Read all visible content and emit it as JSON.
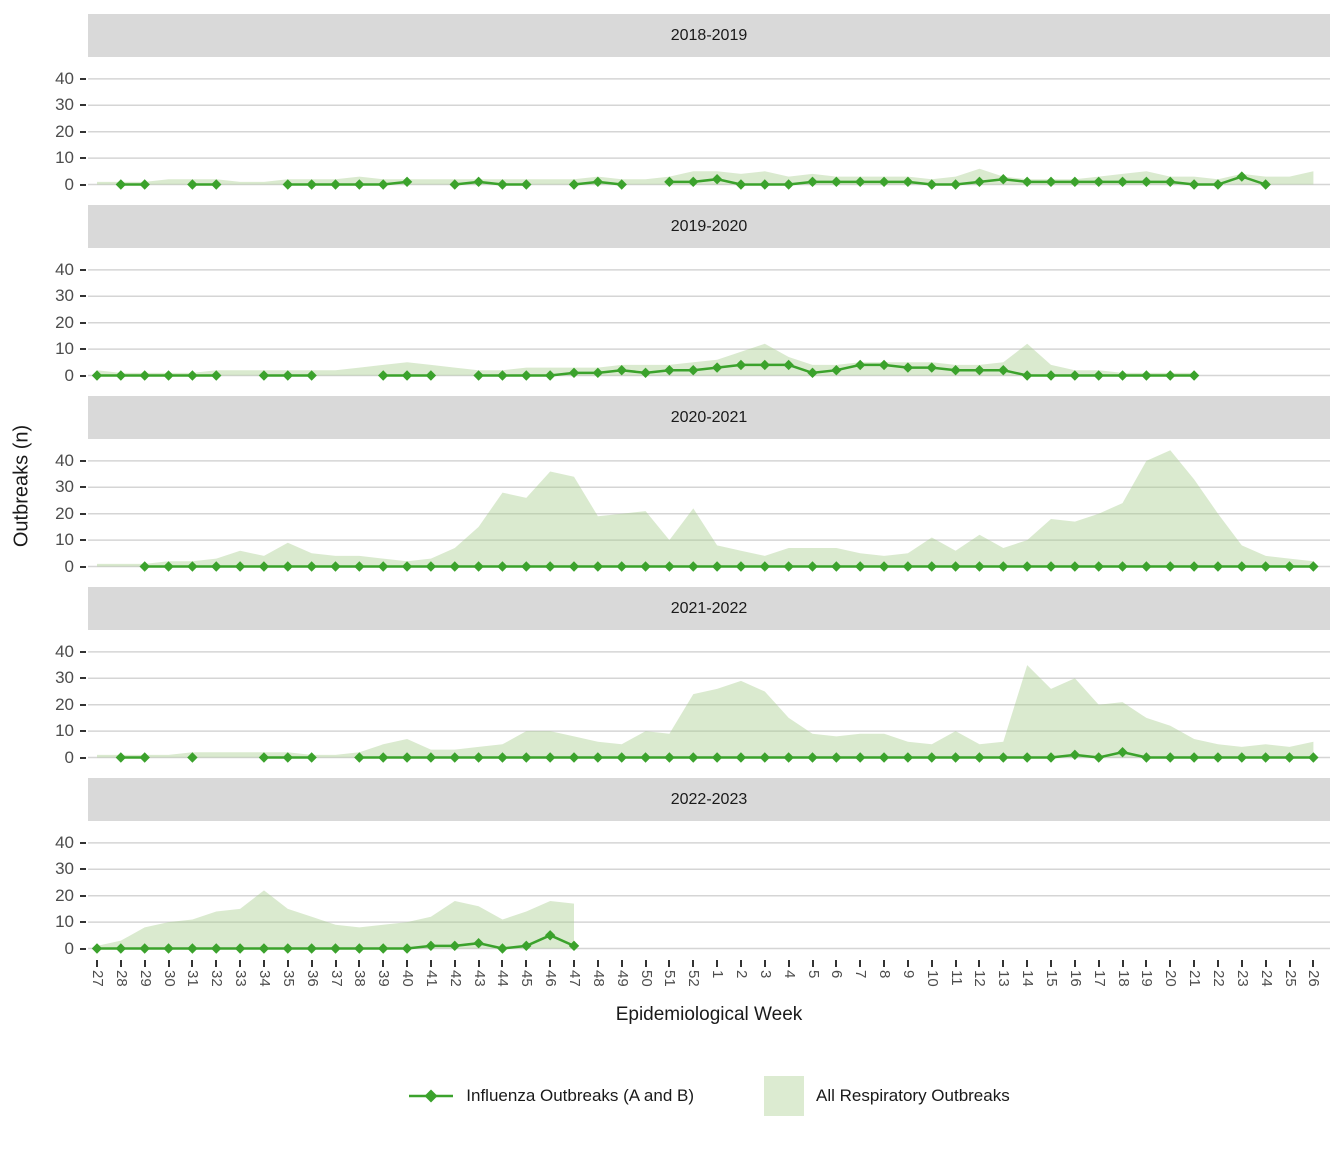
{
  "figure": {
    "y_axis_title": "Outbreaks (n)",
    "x_axis_title": "Epidemiological Week"
  },
  "legend": {
    "line_label": "Influenza Outbreaks (A and B)",
    "area_label": "All Respiratory Outbreaks"
  },
  "chart_data": {
    "type": "area",
    "description": "Faceted seasonal chart: influenza outbreaks (green line with diamond points) and all respiratory outbreaks (light green filled area) by epidemiological week, one panel per season.",
    "xlabel": "Epidemiological Week",
    "ylabel": "Outbreaks (n)",
    "x": [
      "27",
      "28",
      "29",
      "30",
      "31",
      "32",
      "33",
      "34",
      "35",
      "36",
      "37",
      "38",
      "39",
      "40",
      "41",
      "42",
      "43",
      "44",
      "45",
      "46",
      "47",
      "48",
      "49",
      "50",
      "51",
      "52",
      "1",
      "2",
      "3",
      "4",
      "5",
      "6",
      "7",
      "8",
      "9",
      "10",
      "11",
      "12",
      "13",
      "14",
      "15",
      "16",
      "17",
      "18",
      "19",
      "20",
      "21",
      "22",
      "23",
      "24",
      "25",
      "26"
    ],
    "y_ticks": [
      0,
      10,
      20,
      30,
      40
    ],
    "ylim": [
      0,
      44
    ],
    "grid": "horizontal-only",
    "legend_position": "bottom",
    "series_names": [
      "Influenza Outbreaks (A and B)",
      "All Respiratory Outbreaks"
    ],
    "colors": {
      "line": "#3BA22C",
      "area_fill": "#A7CE8C",
      "area_opacity": 0.42,
      "area_effective": "#DCEBD1",
      "strip_bg": "#D9D9D9",
      "grid": "#D5D5D5",
      "axis_text": "#4D4D4D",
      "title_text": "#1A1A1A",
      "tick_mark": "#333333"
    },
    "facets": [
      {
        "season": "2018-2019",
        "influenza": [
          null,
          0,
          0,
          null,
          0,
          0,
          null,
          null,
          0,
          0,
          0,
          0,
          0,
          1,
          null,
          0,
          1,
          0,
          0,
          null,
          0,
          1,
          0,
          null,
          1,
          1,
          2,
          0,
          0,
          0,
          1,
          1,
          1,
          1,
          1,
          0,
          0,
          1,
          2,
          1,
          1,
          1,
          1,
          1,
          1,
          1,
          0,
          0,
          3,
          0,
          null,
          null
        ],
        "respiratory": [
          1,
          1,
          1,
          2,
          2,
          2,
          1,
          1,
          2,
          2,
          2,
          3,
          2,
          2,
          2,
          2,
          2,
          2,
          2,
          2,
          2,
          3,
          2,
          2,
          3,
          5,
          5,
          4,
          5,
          3,
          4,
          3,
          3,
          3,
          3,
          2,
          3,
          6,
          3,
          2,
          2,
          2,
          3,
          4,
          5,
          3,
          3,
          2,
          4,
          3,
          3,
          5
        ]
      },
      {
        "season": "2019-2020",
        "influenza": [
          0,
          0,
          0,
          0,
          0,
          0,
          null,
          0,
          0,
          0,
          null,
          null,
          0,
          0,
          0,
          null,
          0,
          0,
          0,
          0,
          1,
          1,
          2,
          1,
          2,
          2,
          3,
          4,
          4,
          4,
          1,
          2,
          4,
          4,
          3,
          3,
          2,
          2,
          2,
          0,
          0,
          0,
          0,
          0,
          0,
          0,
          0,
          null,
          null,
          null,
          null,
          null
        ],
        "respiratory": [
          2,
          1,
          1,
          1,
          1,
          2,
          2,
          2,
          2,
          2,
          2,
          3,
          4,
          5,
          4,
          3,
          2,
          2,
          3,
          3,
          3,
          3,
          4,
          4,
          4,
          5,
          6,
          9,
          12,
          7,
          4,
          4,
          5,
          5,
          5,
          5,
          4,
          4,
          5,
          12,
          4,
          2,
          2,
          1,
          1,
          1,
          1,
          null,
          null,
          null,
          null,
          null
        ]
      },
      {
        "season": "2020-2021",
        "influenza": [
          null,
          null,
          0,
          0,
          0,
          0,
          0,
          0,
          0,
          0,
          0,
          0,
          0,
          0,
          0,
          0,
          0,
          0,
          0,
          0,
          0,
          0,
          0,
          0,
          0,
          0,
          0,
          0,
          0,
          0,
          0,
          0,
          0,
          0,
          0,
          0,
          0,
          0,
          0,
          0,
          0,
          0,
          0,
          0,
          0,
          0,
          0,
          0,
          0,
          0,
          0,
          0
        ],
        "respiratory": [
          1,
          1,
          1,
          2,
          2,
          3,
          6,
          4,
          9,
          5,
          4,
          4,
          3,
          2,
          3,
          7,
          15,
          28,
          26,
          36,
          34,
          19,
          20,
          21,
          10,
          22,
          8,
          6,
          4,
          7,
          7,
          7,
          5,
          4,
          5,
          11,
          6,
          12,
          7,
          10,
          18,
          17,
          20,
          24,
          40,
          44,
          33,
          20,
          8,
          4,
          3,
          2
        ]
      },
      {
        "season": "2021-2022",
        "influenza": [
          null,
          0,
          0,
          null,
          0,
          null,
          null,
          0,
          0,
          0,
          null,
          0,
          0,
          0,
          0,
          0,
          0,
          0,
          0,
          0,
          0,
          0,
          0,
          0,
          0,
          0,
          0,
          0,
          0,
          0,
          0,
          0,
          0,
          0,
          0,
          0,
          0,
          0,
          0,
          0,
          0,
          1,
          0,
          2,
          0,
          0,
          0,
          0,
          0,
          0,
          0,
          0
        ],
        "respiratory": [
          1,
          1,
          1,
          1,
          2,
          2,
          2,
          2,
          2,
          1,
          1,
          2,
          5,
          7,
          3,
          3,
          4,
          5,
          10,
          10,
          8,
          6,
          5,
          10,
          9,
          24,
          26,
          29,
          25,
          15,
          9,
          8,
          9,
          9,
          6,
          5,
          10,
          5,
          6,
          35,
          26,
          30,
          20,
          21,
          15,
          12,
          7,
          5,
          4,
          5,
          4,
          6
        ]
      },
      {
        "season": "2022-2023",
        "influenza": [
          0,
          0,
          0,
          0,
          0,
          0,
          0,
          0,
          0,
          0,
          0,
          0,
          0,
          0,
          1,
          1,
          2,
          0,
          1,
          5,
          1,
          null,
          null,
          null,
          null,
          null,
          null,
          null,
          null,
          null,
          null,
          null,
          null,
          null,
          null,
          null,
          null,
          null,
          null,
          null,
          null,
          null,
          null,
          null,
          null,
          null,
          null,
          null,
          null,
          null,
          null,
          null
        ],
        "respiratory": [
          1,
          3,
          8,
          10,
          11,
          14,
          15,
          22,
          15,
          12,
          9,
          8,
          9,
          10,
          12,
          18,
          16,
          11,
          14,
          18,
          17,
          null,
          null,
          null,
          null,
          null,
          null,
          null,
          null,
          null,
          null,
          null,
          null,
          null,
          null,
          null,
          null,
          null,
          null,
          null,
          null,
          null,
          null,
          null,
          null,
          null,
          null,
          null,
          null,
          null,
          null,
          null
        ]
      }
    ]
  }
}
